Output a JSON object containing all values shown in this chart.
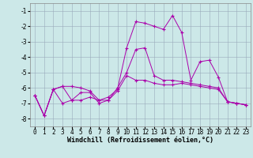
{
  "xlabel": "Windchill (Refroidissement éolien,°C)",
  "ylabel": "",
  "xlim": [
    -0.5,
    23.5
  ],
  "ylim": [
    -8.5,
    -0.5
  ],
  "yticks": [
    -8,
    -7,
    -6,
    -5,
    -4,
    -3,
    -2,
    -1
  ],
  "xticks": [
    0,
    1,
    2,
    3,
    4,
    5,
    6,
    7,
    8,
    9,
    10,
    11,
    12,
    13,
    14,
    15,
    16,
    17,
    18,
    19,
    20,
    21,
    22,
    23
  ],
  "bg_color": "#cce8e8",
  "line_color": "#aa00aa",
  "grid_color": "#99aabb",
  "lines": [
    {
      "x": [
        0,
        1,
        2,
        3,
        4,
        5,
        6,
        7,
        8,
        9,
        10,
        11,
        12,
        13,
        14,
        15,
        16,
        17,
        18,
        19,
        20,
        21,
        22,
        23
      ],
      "y": [
        -6.5,
        -7.8,
        -6.1,
        -5.9,
        -6.8,
        -6.8,
        -6.6,
        -6.8,
        -6.8,
        -6.2,
        -5.2,
        -5.5,
        -5.5,
        -5.7,
        -5.8,
        -5.8,
        -5.7,
        -5.8,
        -5.9,
        -6.0,
        -6.1,
        -6.9,
        -7.0,
        -7.1
      ]
    },
    {
      "x": [
        0,
        1,
        2,
        3,
        4,
        5,
        6,
        7,
        8,
        9,
        10,
        11,
        12,
        13,
        14,
        15,
        16,
        17,
        18,
        19,
        20,
        21,
        22,
        23
      ],
      "y": [
        -6.5,
        -7.8,
        -6.1,
        -5.9,
        -5.9,
        -6.0,
        -6.2,
        -6.8,
        -6.6,
        -6.1,
        -3.4,
        -1.7,
        -1.8,
        -2.0,
        -2.2,
        -1.3,
        -2.4,
        -5.5,
        -4.3,
        -4.2,
        -5.3,
        -6.9,
        -7.0,
        -7.1
      ]
    },
    {
      "x": [
        0,
        1,
        2,
        3,
        4,
        5,
        6,
        7,
        8,
        9,
        10,
        11,
        12,
        13,
        14,
        15,
        16,
        17,
        18,
        19,
        20,
        21,
        22,
        23
      ],
      "y": [
        -6.5,
        -7.8,
        -6.1,
        -7.0,
        -6.8,
        -6.3,
        -6.3,
        -7.0,
        -6.8,
        -6.0,
        -5.0,
        -3.5,
        -3.4,
        -5.2,
        -5.5,
        -5.5,
        -5.6,
        -5.7,
        -5.8,
        -5.9,
        -6.0,
        -6.9,
        -7.0,
        -7.1
      ]
    }
  ],
  "font_size": 6,
  "tick_font_size": 5.5
}
